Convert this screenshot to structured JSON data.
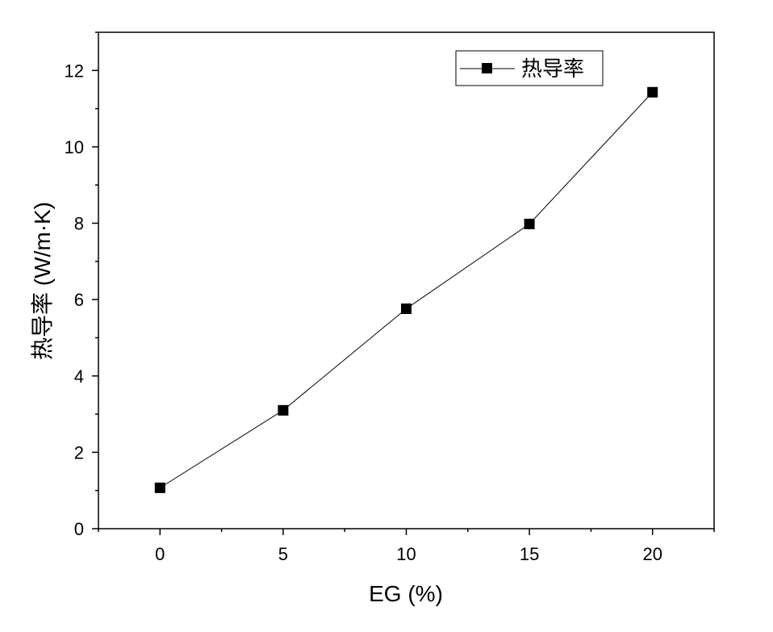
{
  "chart_data": {
    "type": "line",
    "x": [
      0,
      5,
      10,
      15,
      20
    ],
    "series": [
      {
        "name": "热导率",
        "values": [
          1.07,
          3.1,
          5.76,
          7.98,
          11.43
        ]
      }
    ],
    "xlabel": "EG (%)",
    "ylabel": "热导率 (W/m·K)",
    "xlim": [
      -2.5,
      22.5
    ],
    "ylim": [
      0,
      13
    ],
    "xticks": [
      "0",
      "5",
      "10",
      "15",
      "20"
    ],
    "yticks": [
      "0",
      "2",
      "4",
      "6",
      "8",
      "10",
      "12"
    ],
    "grid": false,
    "legend_position": "top-right",
    "marker": "square",
    "line_color": "#000000"
  }
}
